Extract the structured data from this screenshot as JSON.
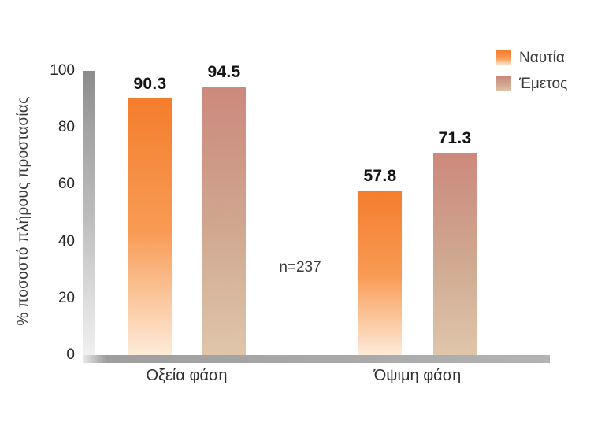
{
  "chart_data": {
    "type": "bar",
    "title": "",
    "ylabel": "% ποσοστό πλήρους προστασίας",
    "xlabel": "",
    "ylim": [
      0,
      100
    ],
    "yticks": [
      100,
      80,
      60,
      40,
      20,
      0
    ],
    "grid": false,
    "legend_position": "top-right",
    "annotation": "n=237",
    "categories": [
      "Οξεία φάση",
      "Όψιμη φάση"
    ],
    "series": [
      {
        "name": "Ναυτία",
        "values": [
          90.3,
          57.8
        ],
        "value_labels": [
          "90.3",
          "57.8"
        ],
        "gradient": [
          "#F47D2C",
          "#F89B55",
          "#FDEBDA"
        ]
      },
      {
        "name": "Έμετος",
        "values": [
          94.5,
          71.3
        ],
        "value_labels": [
          "94.5",
          "71.3"
        ],
        "gradient": [
          "#CC897C",
          "#CFA78F",
          "#DFC6AA"
        ]
      }
    ],
    "colors": {
      "axis_bar_gray": "#8C8C8C",
      "baseline_gray": "#A9A9A9",
      "value_label_text": "#141414",
      "tick_text": "#262626"
    }
  }
}
